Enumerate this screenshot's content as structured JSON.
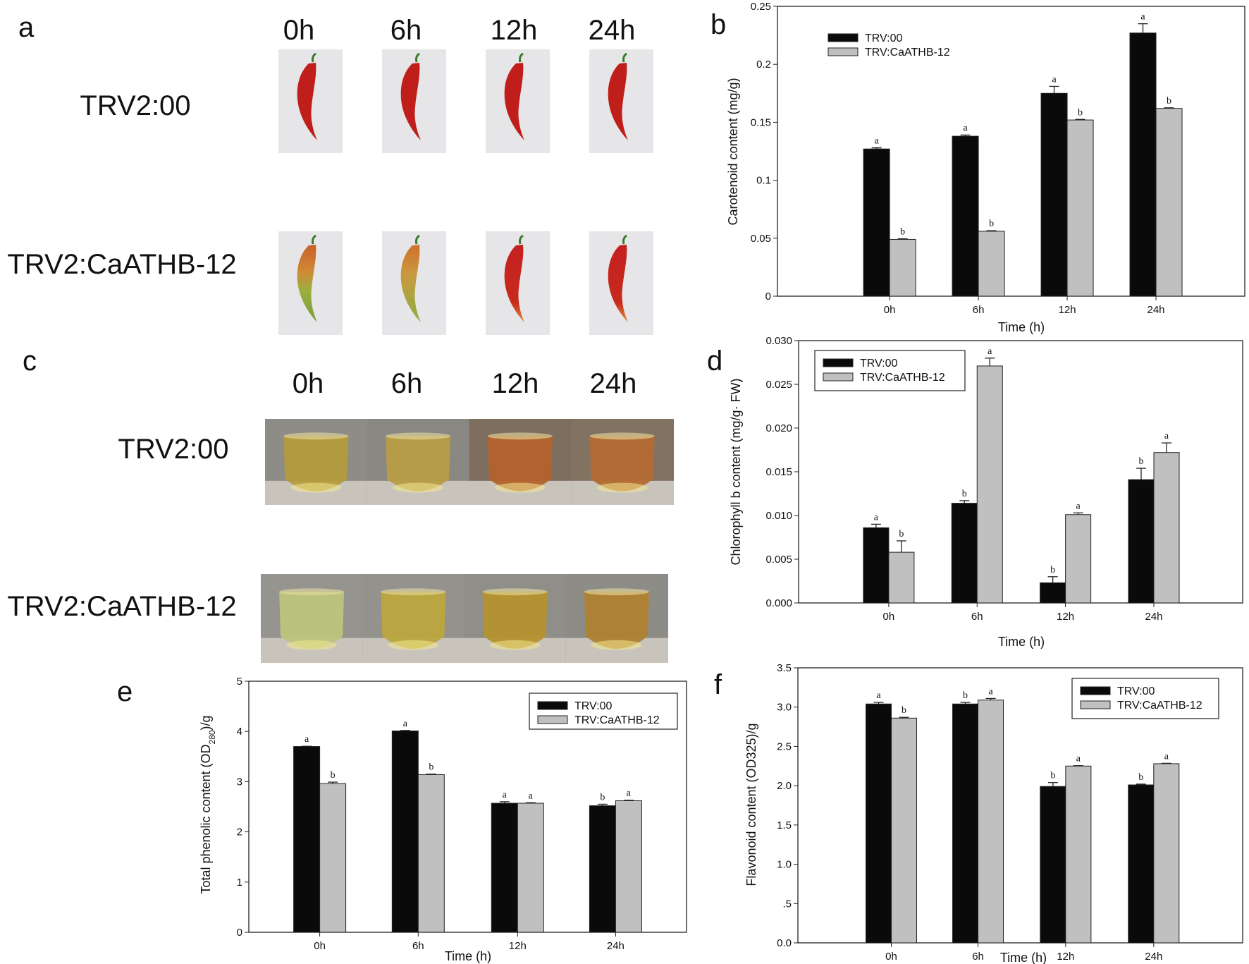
{
  "panel_a": {
    "label": "a",
    "times": [
      "0h",
      "6h",
      "12h",
      "24h"
    ],
    "rows": [
      "TRV2:00",
      "TRV2:CaATHB-12"
    ]
  },
  "panel_c": {
    "label": "c",
    "times": [
      "0h",
      "6h",
      "12h",
      "24h"
    ],
    "rows": [
      "TRV2:00",
      "TRV2:CaATHB-12"
    ]
  },
  "colors": {
    "trv00": "#0a0a0a",
    "trv_caathb12": "#c0c0c0"
  },
  "chart_data": [
    {
      "panel": "b",
      "type": "bar",
      "categories": [
        "0h",
        "6h",
        "12h",
        "24h"
      ],
      "xlabel": "Time (h)",
      "ylabel": "Carotenoid content (mg/g)",
      "ylim": [
        0,
        0.25
      ],
      "yticks": [
        "0",
        "0.05",
        "0.1",
        "0.15",
        "0.2",
        "0.25"
      ],
      "legend": "top-left",
      "series": [
        {
          "name": "TRV:00",
          "values": [
            0.127,
            0.138,
            0.175,
            0.227
          ],
          "errors": [
            0.001,
            0.001,
            0.006,
            0.008
          ],
          "letters": [
            "a",
            "a",
            "a",
            "a"
          ]
        },
        {
          "name": "TRV:CaATHB-12",
          "values": [
            0.049,
            0.056,
            0.152,
            0.162
          ],
          "errors": [
            0.0005,
            0.0005,
            0.0005,
            0.0005
          ],
          "letters": [
            "b",
            "b",
            "b",
            "b"
          ]
        }
      ]
    },
    {
      "panel": "d",
      "type": "bar",
      "categories": [
        "0h",
        "6h",
        "12h",
        "24h"
      ],
      "xlabel": "Time (h)",
      "ylabel": "Chlorophyll b content (mg/g· FW)",
      "ylim": [
        0,
        0.03
      ],
      "yticks": [
        "0.000",
        "0.005",
        "0.010",
        "0.015",
        "0.020",
        "0.025",
        "0.030"
      ],
      "legend": "top-left",
      "series": [
        {
          "name": "TRV:00",
          "values": [
            0.0086,
            0.0114,
            0.0023,
            0.0141
          ],
          "errors": [
            0.0004,
            0.0003,
            0.0007,
            0.0013
          ],
          "letters": [
            "a",
            "b",
            "b",
            "b"
          ]
        },
        {
          "name": "TRV:CaATHB-12",
          "values": [
            0.0058,
            0.0271,
            0.0101,
            0.0172
          ],
          "errors": [
            0.0013,
            0.0009,
            0.0002,
            0.0011
          ],
          "letters": [
            "b",
            "a",
            "a",
            "a"
          ]
        }
      ]
    },
    {
      "panel": "e",
      "type": "bar",
      "categories": [
        "0h",
        "6h",
        "12h",
        "24h"
      ],
      "xlabel": "Time (h)",
      "ylabel": {
        "main": "Total phenolic content (OD",
        "sub": "280",
        "end": ")/g"
      },
      "ylim": [
        0,
        5
      ],
      "yticks": [
        "0",
        "1",
        "2",
        "3",
        "4",
        "5"
      ],
      "legend": "top-right",
      "series": [
        {
          "name": "TRV:00",
          "values": [
            3.7,
            4.01,
            2.57,
            2.52
          ],
          "errors": [
            0.005,
            0.01,
            0.03,
            0.03
          ],
          "letters": [
            "a",
            "a",
            "a",
            "b"
          ]
        },
        {
          "name": "TRV:CaATHB-12",
          "values": [
            2.96,
            3.14,
            2.57,
            2.62
          ],
          "errors": [
            0.03,
            0.01,
            0.01,
            0.01
          ],
          "letters": [
            "b",
            "b",
            "a",
            "a"
          ]
        }
      ]
    },
    {
      "panel": "f",
      "type": "bar",
      "categories": [
        "0h",
        "6h",
        "12h",
        "24h"
      ],
      "xlabel": "Time (h)",
      "ylabel": "Flavonoid content (OD325)/g",
      "ylim": [
        0,
        3.5
      ],
      "yticks": [
        "0.0",
        ".5",
        "1.0",
        "1.5",
        "2.0",
        "2.5",
        "3.0",
        "3.5"
      ],
      "legend": "top-right",
      "series": [
        {
          "name": "TRV:00",
          "values": [
            3.04,
            3.04,
            1.99,
            2.01
          ],
          "errors": [
            0.02,
            0.02,
            0.05,
            0.01
          ],
          "letters": [
            "a",
            "b",
            "b",
            "b"
          ]
        },
        {
          "name": "TRV:CaATHB-12",
          "values": [
            2.86,
            3.09,
            2.25,
            2.28
          ],
          "errors": [
            0.01,
            0.02,
            0.005,
            0.005
          ],
          "letters": [
            "b",
            "a",
            "a",
            "a"
          ]
        }
      ]
    }
  ]
}
